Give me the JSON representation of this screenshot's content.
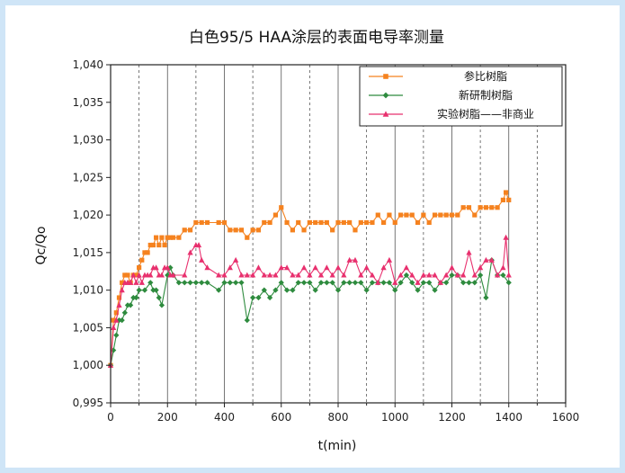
{
  "chart_data": {
    "type": "line",
    "title": "白色95/5 HAA涂层的表面电导率测量",
    "xlabel": "t(min)",
    "ylabel": "Qc/Qo",
    "xlim": [
      0,
      1600
    ],
    "ylim": [
      0.995,
      1.04
    ],
    "xticks": [
      0,
      200,
      400,
      600,
      800,
      1000,
      1200,
      1400,
      1600
    ],
    "xtick_labels": [
      "0",
      "200",
      "400",
      "600",
      "800",
      "1000",
      "1200",
      "1400",
      "1600"
    ],
    "yticks": [
      0.995,
      1.0,
      1.005,
      1.01,
      1.015,
      1.02,
      1.025,
      1.03,
      1.035,
      1.04
    ],
    "ytick_labels": [
      "0,995",
      "1,000",
      "1,005",
      "1,010",
      "1,015",
      "1,020",
      "1,025",
      "1,030",
      "1,035",
      "1,040"
    ],
    "grid": "vertical lines every 100 min (dashed at odd hundreds)",
    "legend_position": "top-right",
    "series": [
      {
        "name": "参比树脂",
        "color": "#f5821f",
        "marker": "square",
        "x": [
          0,
          10,
          20,
          30,
          40,
          50,
          60,
          70,
          80,
          90,
          100,
          110,
          120,
          130,
          140,
          150,
          160,
          170,
          180,
          190,
          200,
          210,
          220,
          240,
          260,
          280,
          300,
          320,
          340,
          380,
          400,
          420,
          440,
          460,
          480,
          500,
          520,
          540,
          560,
          580,
          600,
          620,
          640,
          660,
          680,
          700,
          720,
          740,
          760,
          780,
          800,
          820,
          840,
          860,
          880,
          900,
          920,
          940,
          960,
          980,
          1000,
          1020,
          1040,
          1060,
          1080,
          1100,
          1120,
          1140,
          1160,
          1180,
          1200,
          1220,
          1240,
          1260,
          1280,
          1300,
          1320,
          1340,
          1360,
          1380,
          1390,
          1400
        ],
        "y": [
          1.0,
          1.006,
          1.007,
          1.009,
          1.011,
          1.012,
          1.012,
          1.011,
          1.012,
          1.012,
          1.013,
          1.014,
          1.015,
          1.015,
          1.016,
          1.016,
          1.017,
          1.016,
          1.017,
          1.016,
          1.017,
          1.017,
          1.017,
          1.017,
          1.018,
          1.018,
          1.019,
          1.019,
          1.019,
          1.019,
          1.019,
          1.018,
          1.018,
          1.018,
          1.017,
          1.018,
          1.018,
          1.019,
          1.019,
          1.02,
          1.021,
          1.019,
          1.018,
          1.019,
          1.018,
          1.019,
          1.019,
          1.019,
          1.019,
          1.018,
          1.019,
          1.019,
          1.019,
          1.018,
          1.019,
          1.019,
          1.019,
          1.02,
          1.019,
          1.02,
          1.019,
          1.02,
          1.02,
          1.02,
          1.019,
          1.02,
          1.019,
          1.02,
          1.02,
          1.02,
          1.02,
          1.02,
          1.021,
          1.021,
          1.02,
          1.021,
          1.021,
          1.021,
          1.021,
          1.022,
          1.023,
          1.022
        ]
      },
      {
        "name": "新研制树脂",
        "color": "#2e8b3e",
        "marker": "diamond",
        "x": [
          0,
          10,
          20,
          30,
          40,
          50,
          60,
          70,
          80,
          90,
          100,
          120,
          140,
          150,
          160,
          170,
          180,
          200,
          210,
          220,
          240,
          260,
          280,
          300,
          320,
          340,
          380,
          400,
          420,
          440,
          460,
          480,
          500,
          520,
          540,
          560,
          580,
          600,
          620,
          640,
          660,
          680,
          700,
          720,
          740,
          760,
          780,
          800,
          820,
          840,
          860,
          880,
          900,
          920,
          940,
          960,
          980,
          1000,
          1020,
          1040,
          1060,
          1080,
          1100,
          1120,
          1140,
          1160,
          1180,
          1200,
          1220,
          1240,
          1260,
          1280,
          1300,
          1320,
          1340,
          1360,
          1380,
          1400
        ],
        "y": [
          1.0,
          1.002,
          1.004,
          1.006,
          1.006,
          1.007,
          1.008,
          1.008,
          1.009,
          1.009,
          1.01,
          1.01,
          1.011,
          1.01,
          1.01,
          1.009,
          1.008,
          1.012,
          1.013,
          1.012,
          1.011,
          1.011,
          1.011,
          1.011,
          1.011,
          1.011,
          1.01,
          1.011,
          1.011,
          1.011,
          1.011,
          1.006,
          1.009,
          1.009,
          1.01,
          1.009,
          1.01,
          1.011,
          1.01,
          1.01,
          1.011,
          1.011,
          1.011,
          1.01,
          1.011,
          1.011,
          1.011,
          1.01,
          1.011,
          1.011,
          1.011,
          1.011,
          1.01,
          1.011,
          1.011,
          1.011,
          1.011,
          1.01,
          1.011,
          1.012,
          1.011,
          1.01,
          1.011,
          1.011,
          1.01,
          1.011,
          1.011,
          1.012,
          1.012,
          1.011,
          1.011,
          1.011,
          1.012,
          1.009,
          1.014,
          1.012,
          1.012,
          1.011
        ]
      },
      {
        "name": "实验树脂——非商业",
        "color": "#e8306e",
        "marker": "triangle",
        "x": [
          0,
          10,
          20,
          30,
          40,
          50,
          60,
          70,
          80,
          90,
          100,
          110,
          120,
          130,
          140,
          150,
          160,
          170,
          180,
          190,
          200,
          210,
          220,
          260,
          280,
          300,
          310,
          320,
          340,
          380,
          400,
          420,
          440,
          460,
          480,
          500,
          520,
          540,
          560,
          580,
          600,
          620,
          640,
          660,
          680,
          700,
          720,
          740,
          760,
          780,
          800,
          820,
          840,
          860,
          880,
          900,
          920,
          940,
          960,
          980,
          1000,
          1020,
          1040,
          1060,
          1080,
          1100,
          1120,
          1140,
          1160,
          1180,
          1200,
          1220,
          1240,
          1260,
          1280,
          1300,
          1320,
          1340,
          1360,
          1380,
          1390,
          1400
        ],
        "y": [
          1.0,
          1.005,
          1.006,
          1.008,
          1.01,
          1.011,
          1.011,
          1.011,
          1.012,
          1.011,
          1.012,
          1.011,
          1.012,
          1.012,
          1.012,
          1.013,
          1.013,
          1.012,
          1.012,
          1.013,
          1.013,
          1.012,
          1.012,
          1.012,
          1.015,
          1.016,
          1.016,
          1.014,
          1.013,
          1.012,
          1.012,
          1.013,
          1.014,
          1.012,
          1.012,
          1.012,
          1.013,
          1.012,
          1.012,
          1.012,
          1.013,
          1.013,
          1.012,
          1.012,
          1.013,
          1.012,
          1.013,
          1.012,
          1.013,
          1.012,
          1.013,
          1.012,
          1.014,
          1.014,
          1.012,
          1.013,
          1.012,
          1.011,
          1.013,
          1.014,
          1.011,
          1.012,
          1.013,
          1.012,
          1.011,
          1.012,
          1.012,
          1.012,
          1.011,
          1.012,
          1.013,
          1.012,
          1.012,
          1.015,
          1.012,
          1.013,
          1.014,
          1.014,
          1.012,
          1.013,
          1.017,
          1.012
        ]
      }
    ]
  }
}
